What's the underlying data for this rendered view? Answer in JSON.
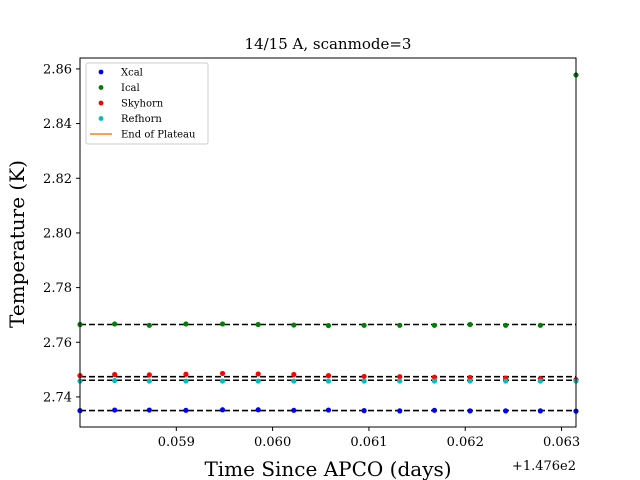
{
  "chart_data": {
    "type": "scatter",
    "title": "14/15 A, scanmode=3",
    "xlabel": "Time Since APCO (days)",
    "ylabel": "Temperature (K)",
    "x_offset_label": "+1.476e2",
    "xlim": [
      0.058,
      0.06315
    ],
    "ylim": [
      2.729,
      2.864
    ],
    "x_ticks": [
      0.059,
      0.06,
      0.061,
      0.062,
      0.063
    ],
    "x_tick_labels": [
      "0.059",
      "0.060",
      "0.061",
      "0.062",
      "0.063"
    ],
    "y_ticks": [
      2.74,
      2.76,
      2.78,
      2.8,
      2.82,
      2.84,
      2.86
    ],
    "y_tick_labels": [
      "2.74",
      "2.76",
      "2.78",
      "2.80",
      "2.82",
      "2.84",
      "2.86"
    ],
    "grid": false,
    "legend_position": "top-left",
    "x": [
      0.058,
      0.05836,
      0.05872,
      0.0591,
      0.05948,
      0.05985,
      0.06022,
      0.06058,
      0.06095,
      0.06132,
      0.06168,
      0.06205,
      0.06242,
      0.06278,
      0.06315
    ],
    "series": [
      {
        "name": "Xcal",
        "color": "#0000ff",
        "marker": "dot",
        "values": [
          2.735,
          2.7352,
          2.7352,
          2.7351,
          2.7353,
          2.7353,
          2.7351,
          2.7352,
          2.735,
          2.7349,
          2.7351,
          2.7349,
          2.7349,
          2.7349,
          2.7348
        ]
      },
      {
        "name": "Ical",
        "color": "#008000",
        "marker": "dot",
        "values": [
          2.7665,
          2.7667,
          2.7662,
          2.7667,
          2.7667,
          2.7665,
          2.7663,
          2.7661,
          2.7662,
          2.7662,
          2.7662,
          2.7665,
          2.7662,
          2.7662,
          2.8578
        ]
      },
      {
        "name": "Skyhorn",
        "color": "#ff0000",
        "marker": "dot",
        "values": [
          2.7478,
          2.7482,
          2.7481,
          2.7483,
          2.7486,
          2.7484,
          2.7482,
          2.7478,
          2.7475,
          2.7474,
          2.7472,
          2.7471,
          2.7469,
          2.7467,
          2.7463
        ]
      },
      {
        "name": "Refhorn",
        "color": "#00bfbf",
        "marker": "dot",
        "values": [
          2.7458,
          2.746,
          2.7458,
          2.7458,
          2.7458,
          2.7458,
          2.7458,
          2.7458,
          2.7458,
          2.7458,
          2.7458,
          2.7458,
          2.7458,
          2.7458,
          2.7458
        ]
      },
      {
        "name": "End of Plateau",
        "color": "#ff7f0e",
        "marker": "line",
        "values": []
      }
    ],
    "reference_lines": {
      "style": "dashed",
      "color": "#000000",
      "y_values": [
        2.7665,
        2.7474,
        2.7461,
        2.735
      ]
    }
  }
}
